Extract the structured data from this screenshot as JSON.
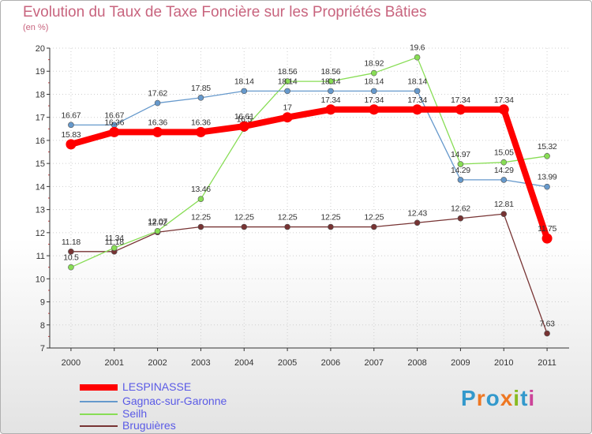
{
  "chart_data": {
    "type": "line",
    "title": "Evolution du Taux de Taxe Foncière sur les Propriétés Bâties",
    "ylabel": "(en %)",
    "xlabel": "",
    "x": [
      "2000",
      "2001",
      "2002",
      "2003",
      "2004",
      "2005",
      "2006",
      "2007",
      "2008",
      "2009",
      "2010",
      "2011"
    ],
    "ylim": [
      7,
      20
    ],
    "yticks": [
      7,
      8,
      9,
      10,
      11,
      12,
      13,
      14,
      15,
      16,
      17,
      18,
      19,
      20
    ],
    "series": [
      {
        "name": "LESPINASSE",
        "color": "#ff0000",
        "values": [
          15.83,
          16.36,
          16.36,
          16.36,
          16.61,
          17,
          17.34,
          17.34,
          17.34,
          17.34,
          17.34,
          11.75
        ],
        "labels": [
          "15.83",
          "16.36",
          "16.36",
          "16.36",
          "16.61",
          "17",
          "17.34",
          "17.34",
          "17.34",
          "17.34",
          "17.34",
          "11.75"
        ]
      },
      {
        "name": "Gagnac-sur-Garonne",
        "color": "#6699cc",
        "values": [
          16.67,
          16.67,
          17.62,
          17.85,
          18.14,
          18.14,
          18.14,
          18.14,
          18.14,
          14.29,
          14.29,
          13.99
        ],
        "labels": [
          "16.67",
          "16.67",
          "17.62",
          "17.85",
          "18.14",
          "18.14",
          "18.14",
          "18.14",
          "18.14",
          "14.29",
          "14.29",
          "13.99"
        ]
      },
      {
        "name": "Seilh",
        "color": "#88dd55",
        "values": [
          10.5,
          11.34,
          12.07,
          13.46,
          16.5,
          18.56,
          18.56,
          18.92,
          19.6,
          14.97,
          15.05,
          15.32
        ],
        "labels": [
          "10.5",
          "11.34",
          "12.07",
          "13.46",
          "16.5",
          "18.56",
          "18.56",
          "18.92",
          "19.6",
          "14.97",
          "15.05",
          "15.32"
        ]
      },
      {
        "name": "Bruguières",
        "color": "#773333",
        "values": [
          11.18,
          11.18,
          12.02,
          12.25,
          12.25,
          12.25,
          12.25,
          12.25,
          12.43,
          12.62,
          12.81,
          7.63
        ],
        "labels": [
          "11.18",
          "11.18",
          "12.02",
          "12.25",
          "12.25",
          "12.25",
          "12.25",
          "12.25",
          "12.43",
          "12.62",
          "12.81",
          "7.63"
        ]
      }
    ]
  },
  "logo": {
    "text": "Proxiti",
    "colors": [
      "#3399cc",
      "#ee7722",
      "#3399cc",
      "#ee7722",
      "#88bb22",
      "#3399cc",
      "#cc4499"
    ]
  }
}
